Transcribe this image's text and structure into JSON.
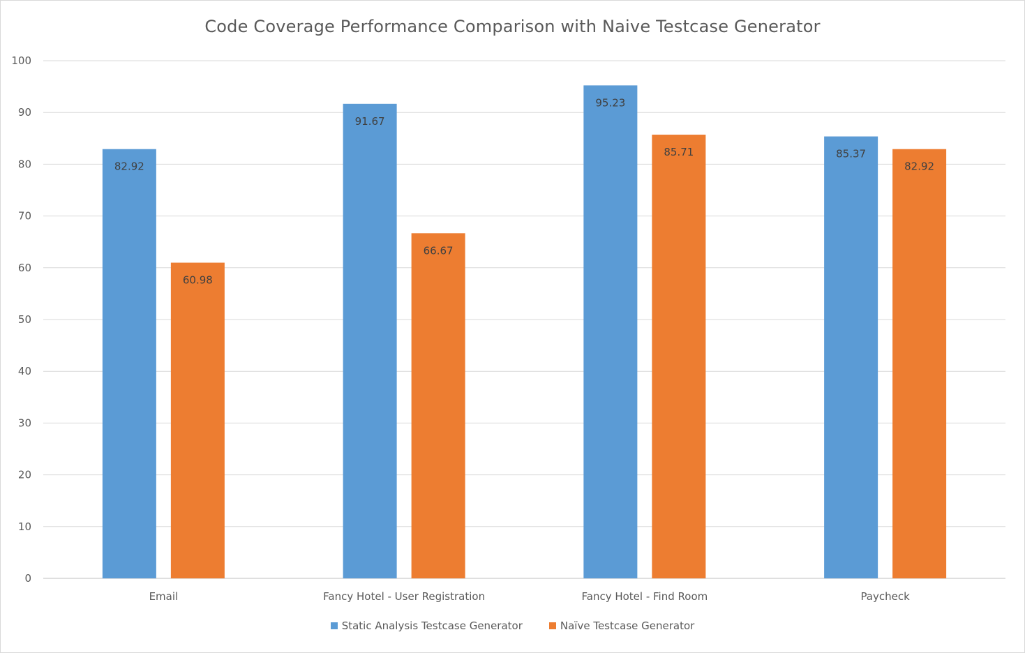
{
  "chart_data": {
    "type": "bar",
    "title": "Code Coverage Performance Comparison with Naive Testcase Generator",
    "xlabel": "",
    "ylabel": "",
    "categories": [
      "Email",
      "Fancy Hotel - User Registration",
      "Fancy Hotel - Find Room",
      "Paycheck"
    ],
    "series": [
      {
        "name": "Static Analysis Testcase Generator",
        "color": "#5b9bd5",
        "values": [
          82.92,
          91.67,
          95.23,
          85.37
        ]
      },
      {
        "name": "Naïve Testcase Generator",
        "color": "#ed7d31",
        "values": [
          60.98,
          66.67,
          85.71,
          82.92
        ]
      }
    ],
    "ylim": [
      0,
      100
    ],
    "yticks": [
      0,
      10,
      20,
      30,
      40,
      50,
      60,
      70,
      80,
      90,
      100
    ],
    "grid": true,
    "legend": "bottom"
  }
}
